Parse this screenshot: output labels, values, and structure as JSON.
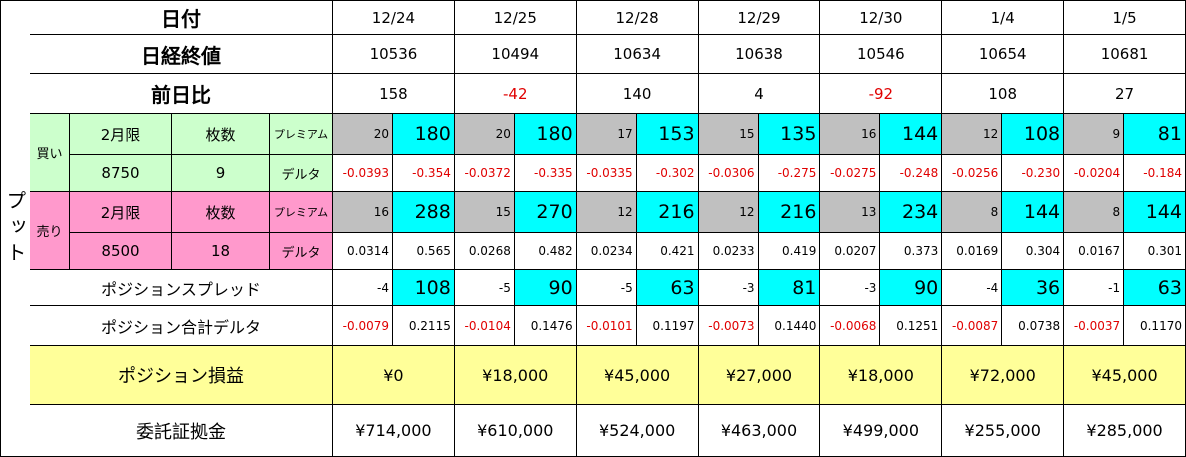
{
  "side_label": "プット",
  "header": {
    "label": "日付",
    "dates": [
      "12/24",
      "12/25",
      "12/28",
      "12/29",
      "12/30",
      "1/4",
      "1/5"
    ]
  },
  "nikkei": {
    "label": "日経終値",
    "values": [
      "10536",
      "10494",
      "10634",
      "10638",
      "10546",
      "10654",
      "10681"
    ]
  },
  "change": {
    "label": "前日比",
    "values": [
      "158",
      "-42",
      "140",
      "4",
      "-92",
      "108",
      "27"
    ]
  },
  "buy": {
    "side": "買い",
    "month": "2月限",
    "qty_label": "枚数",
    "premium_label": "プレミアム",
    "strike": "8750",
    "qty": "9",
    "delta_label": "デルタ",
    "premium": [
      [
        "20",
        "180"
      ],
      [
        "20",
        "180"
      ],
      [
        "17",
        "153"
      ],
      [
        "15",
        "135"
      ],
      [
        "16",
        "144"
      ],
      [
        "12",
        "108"
      ],
      [
        "9",
        "81"
      ]
    ],
    "delta": [
      [
        "-0.0393",
        "-0.354"
      ],
      [
        "-0.0372",
        "-0.335"
      ],
      [
        "-0.0335",
        "-0.302"
      ],
      [
        "-0.0306",
        "-0.275"
      ],
      [
        "-0.0275",
        "-0.248"
      ],
      [
        "-0.0256",
        "-0.230"
      ],
      [
        "-0.0204",
        "-0.184"
      ]
    ]
  },
  "sell": {
    "side": "売り",
    "month": "2月限",
    "qty_label": "枚数",
    "premium_label": "プレミアム",
    "strike": "8500",
    "qty": "18",
    "delta_label": "デルタ",
    "premium": [
      [
        "16",
        "288"
      ],
      [
        "15",
        "270"
      ],
      [
        "12",
        "216"
      ],
      [
        "12",
        "216"
      ],
      [
        "13",
        "234"
      ],
      [
        "8",
        "144"
      ],
      [
        "8",
        "144"
      ]
    ],
    "delta": [
      [
        "0.0314",
        "0.565"
      ],
      [
        "0.0268",
        "0.482"
      ],
      [
        "0.0234",
        "0.421"
      ],
      [
        "0.0233",
        "0.419"
      ],
      [
        "0.0207",
        "0.373"
      ],
      [
        "0.0169",
        "0.304"
      ],
      [
        "0.0167",
        "0.301"
      ]
    ]
  },
  "spread": {
    "label": "ポジションスプレッド",
    "values": [
      [
        "-4",
        "108"
      ],
      [
        "-5",
        "90"
      ],
      [
        "-5",
        "63"
      ],
      [
        "-3",
        "81"
      ],
      [
        "-3",
        "90"
      ],
      [
        "-4",
        "36"
      ],
      [
        "-1",
        "63"
      ]
    ]
  },
  "total_delta": {
    "label": "ポジション合計デルタ",
    "values": [
      [
        "-0.0079",
        "0.2115"
      ],
      [
        "-0.0104",
        "0.1476"
      ],
      [
        "-0.0101",
        "0.1197"
      ],
      [
        "-0.0073",
        "0.1440"
      ],
      [
        "-0.0068",
        "0.1251"
      ],
      [
        "-0.0087",
        "0.0738"
      ],
      [
        "-0.0037",
        "0.1170"
      ]
    ]
  },
  "pnl": {
    "label": "ポジション損益",
    "values": [
      "¥0",
      "¥18,000",
      "¥45,000",
      "¥27,000",
      "¥18,000",
      "¥72,000",
      "¥45,000"
    ]
  },
  "margin": {
    "label": "委託証拠金",
    "values": [
      "¥714,000",
      "¥610,000",
      "¥524,000",
      "¥463,000",
      "¥499,000",
      "¥255,000",
      "¥285,000"
    ]
  }
}
